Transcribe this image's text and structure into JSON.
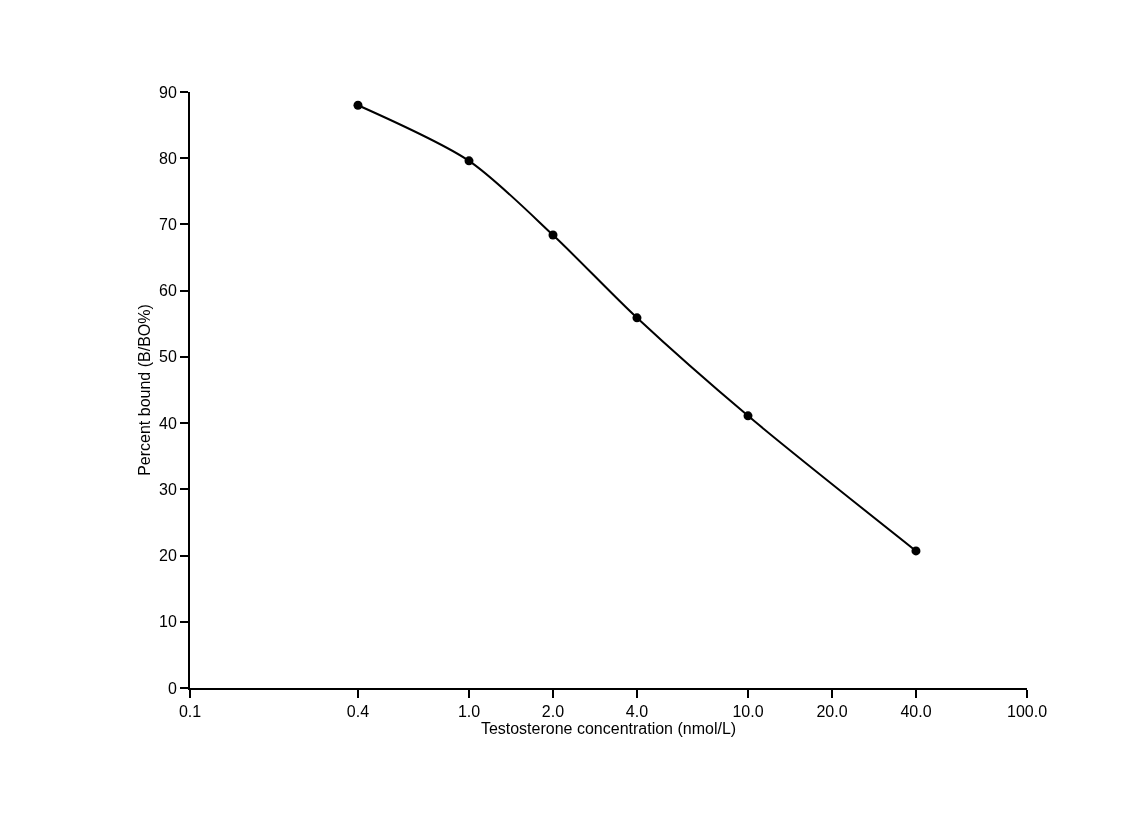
{
  "chart_data": {
    "type": "line",
    "xlabel": "Testosterone concentration (nmol/L)",
    "ylabel": "Percent bound (B/BO%)",
    "x": [
      0.4,
      1.0,
      2.0,
      4.0,
      10.0,
      40.0
    ],
    "series": [
      {
        "color": "#000000",
        "values": [
          88.0,
          79.6,
          68.4,
          55.9,
          41.1,
          20.7
        ]
      }
    ],
    "log": "x",
    "xlim": [
      0.1,
      100
    ],
    "xticks": [
      {
        "value": 0.1,
        "label": "0.1"
      },
      {
        "value": 0.4,
        "label": "0.4"
      },
      {
        "value": 1,
        "label": "1.0"
      },
      {
        "value": 2,
        "label": "2.0"
      },
      {
        "value": 4,
        "label": "4.0"
      },
      {
        "value": 10,
        "label": "10.0"
      },
      {
        "value": 20,
        "label": "20.0"
      },
      {
        "value": 40,
        "label": "40.0"
      },
      {
        "value": 100,
        "label": "100.0"
      }
    ],
    "ylim": [
      0,
      90
    ],
    "yticks": [
      0,
      10,
      20,
      30,
      40,
      50,
      60,
      70,
      80,
      90
    ],
    "grid": false,
    "marker": "circle",
    "line_style": "solid"
  }
}
